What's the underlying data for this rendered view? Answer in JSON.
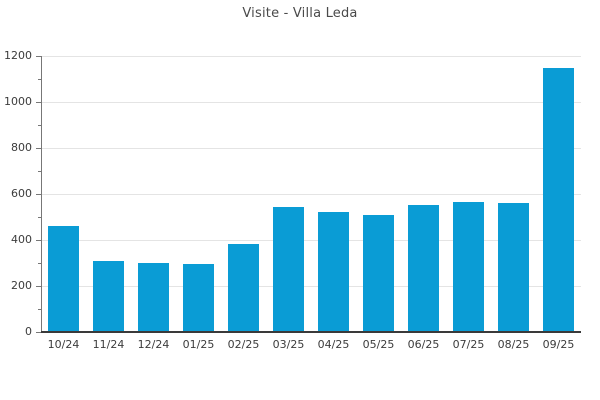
{
  "title": "Visite - Villa Leda",
  "colors": {
    "bar": "#0a9cd5",
    "title_text": "#4a4a4a",
    "tick_text": "#3c3c3c",
    "grid": "#e4e4e4",
    "y_axis_line": "#777777",
    "x_axis_line": "#3a3a3a",
    "background": "#ffffff"
  },
  "chart_data": {
    "type": "bar",
    "title": "Visite - Villa Leda",
    "categories": [
      "10/24",
      "11/24",
      "12/24",
      "01/25",
      "02/25",
      "03/25",
      "04/25",
      "05/25",
      "06/25",
      "07/25",
      "08/25",
      "09/25"
    ],
    "values": [
      455,
      305,
      295,
      290,
      378,
      538,
      518,
      503,
      546,
      563,
      558,
      1143
    ],
    "xlabel": "",
    "ylabel": "",
    "ylim": [
      0,
      1200
    ],
    "yticks": [
      0,
      200,
      400,
      600,
      800,
      1000,
      1200
    ],
    "yticks_minor": [
      100,
      300,
      500,
      700,
      900,
      1100
    ],
    "grid": "horizontal-major",
    "legend": "none"
  }
}
